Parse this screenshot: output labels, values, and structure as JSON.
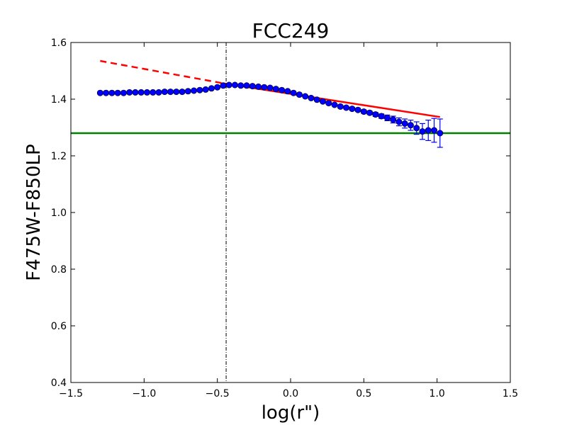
{
  "chart_data": {
    "type": "scatter",
    "title": "FCC249",
    "xlabel": "log(r\")",
    "ylabel": "F475W-F850LP",
    "xlim": [
      -1.5,
      1.5
    ],
    "ylim": [
      0.4,
      1.6
    ],
    "x_ticks": [
      -1.5,
      -1.0,
      -0.5,
      0.0,
      0.5,
      1.0,
      1.5
    ],
    "y_ticks": [
      0.4,
      0.6,
      0.8,
      1.0,
      1.2,
      1.4,
      1.6
    ],
    "x_tick_labels": [
      "−1.5",
      "−1.0",
      "−0.5",
      "0.0",
      "0.5",
      "1.0",
      "1.5"
    ],
    "y_tick_labels": [
      "0.4",
      "0.6",
      "0.8",
      "1.0",
      "1.2",
      "1.4",
      "1.6"
    ],
    "grid": false,
    "colors": {
      "points": "#0000ff",
      "fit": "#ff0000",
      "horizontal_line": "#008000",
      "vertical_line": "#000000"
    },
    "series": [
      {
        "kind": "points-with-errorbars",
        "x": [
          -1.3,
          -1.26,
          -1.22,
          -1.18,
          -1.14,
          -1.1,
          -1.06,
          -1.02,
          -0.98,
          -0.94,
          -0.9,
          -0.86,
          -0.82,
          -0.78,
          -0.74,
          -0.7,
          -0.66,
          -0.62,
          -0.58,
          -0.54,
          -0.5,
          -0.46,
          -0.42,
          -0.38,
          -0.34,
          -0.3,
          -0.26,
          -0.22,
          -0.18,
          -0.14,
          -0.1,
          -0.06,
          -0.02,
          0.02,
          0.06,
          0.1,
          0.14,
          0.18,
          0.22,
          0.26,
          0.3,
          0.34,
          0.38,
          0.42,
          0.46,
          0.5,
          0.54,
          0.58,
          0.62,
          0.66,
          0.7,
          0.74,
          0.78,
          0.82,
          0.86,
          0.9,
          0.94,
          0.98,
          1.02
        ],
        "y": [
          1.422,
          1.422,
          1.422,
          1.422,
          1.422,
          1.424,
          1.424,
          1.424,
          1.424,
          1.424,
          1.424,
          1.426,
          1.426,
          1.426,
          1.426,
          1.428,
          1.43,
          1.432,
          1.434,
          1.438,
          1.442,
          1.448,
          1.45,
          1.45,
          1.448,
          1.448,
          1.446,
          1.444,
          1.442,
          1.44,
          1.436,
          1.432,
          1.428,
          1.422,
          1.416,
          1.41,
          1.404,
          1.398,
          1.392,
          1.386,
          1.38,
          1.374,
          1.37,
          1.366,
          1.362,
          1.356,
          1.352,
          1.346,
          1.34,
          1.334,
          1.328,
          1.32,
          1.314,
          1.308,
          1.298,
          1.286,
          1.29,
          1.29,
          1.28
        ],
        "yerr": [
          0.002,
          0.002,
          0.002,
          0.002,
          0.002,
          0.002,
          0.002,
          0.002,
          0.002,
          0.002,
          0.002,
          0.002,
          0.002,
          0.002,
          0.002,
          0.002,
          0.002,
          0.002,
          0.002,
          0.002,
          0.002,
          0.002,
          0.002,
          0.002,
          0.002,
          0.002,
          0.002,
          0.002,
          0.002,
          0.002,
          0.003,
          0.003,
          0.003,
          0.003,
          0.003,
          0.003,
          0.003,
          0.004,
          0.004,
          0.004,
          0.004,
          0.005,
          0.005,
          0.005,
          0.005,
          0.006,
          0.006,
          0.007,
          0.008,
          0.01,
          0.012,
          0.014,
          0.016,
          0.018,
          0.022,
          0.028,
          0.036,
          0.042,
          0.05
        ]
      },
      {
        "kind": "line-solid",
        "x": [
          -0.45,
          1.02
        ],
        "y": [
          1.455,
          1.337
        ]
      },
      {
        "kind": "line-dashed",
        "x": [
          -1.3,
          -0.45
        ],
        "y": [
          1.535,
          1.455
        ]
      },
      {
        "kind": "hline",
        "y": 1.28
      },
      {
        "kind": "vline-dashdot",
        "x": -0.44
      }
    ]
  }
}
